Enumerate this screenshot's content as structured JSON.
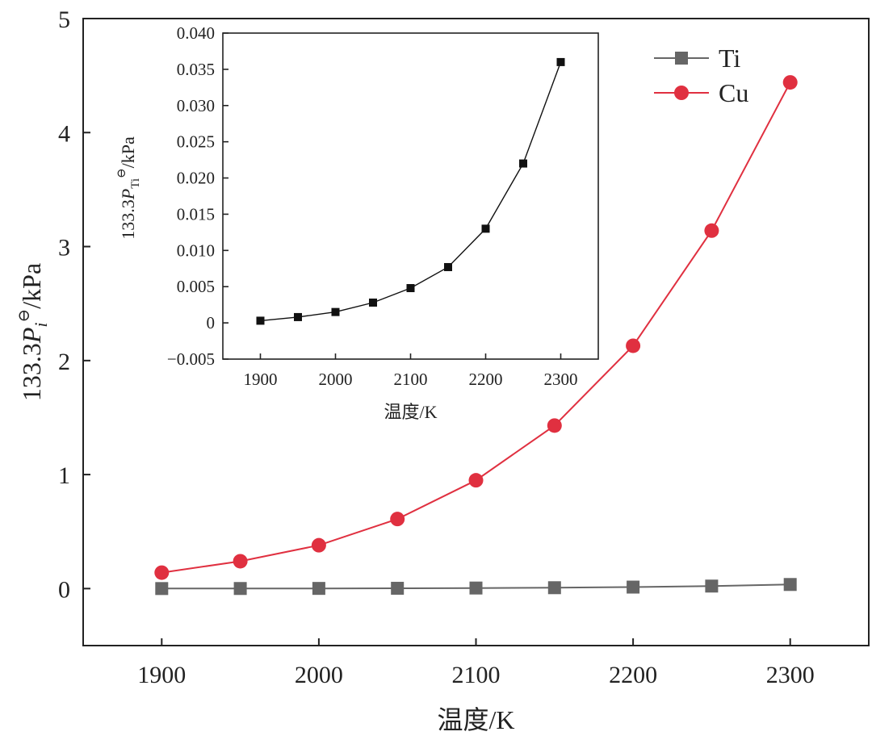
{
  "chart_data": [
    {
      "type": "line",
      "xlabel": "温度/K",
      "ylabel_parts": [
        "133.3",
        "P",
        "i",
        "⊖",
        "/kPa"
      ],
      "x": [
        1900,
        1950,
        2000,
        2050,
        2100,
        2150,
        2200,
        2250,
        2300
      ],
      "xlim": [
        1850,
        2350
      ],
      "ylim": [
        -0.5,
        5
      ],
      "xticks": [
        1900,
        2000,
        2100,
        2200,
        2300
      ],
      "yticks": [
        0,
        1,
        2,
        3,
        4,
        5
      ],
      "legend_position": "top-right",
      "series": [
        {
          "name": "Ti",
          "color": "#666666",
          "marker": "square",
          "values": [
            0.0003,
            0.0008,
            0.0015,
            0.0028,
            0.0048,
            0.0077,
            0.013,
            0.022,
            0.036
          ]
        },
        {
          "name": "Cu",
          "color": "#e03040",
          "marker": "circle",
          "values": [
            0.14,
            0.24,
            0.38,
            0.61,
            0.95,
            1.43,
            2.13,
            3.14,
            4.44
          ]
        }
      ]
    },
    {
      "type": "line",
      "role": "inset",
      "xlabel": "温度/K",
      "ylabel_parts": [
        "133.3",
        "P",
        "Ti",
        "⊖",
        "/kPa"
      ],
      "x": [
        1900,
        1950,
        2000,
        2050,
        2100,
        2150,
        2200,
        2250,
        2300
      ],
      "xlim": [
        1850,
        2350
      ],
      "ylim": [
        -0.005,
        0.04
      ],
      "xticks": [
        1900,
        2000,
        2100,
        2200,
        2300
      ],
      "yticks": [
        -0.005,
        0,
        0.005,
        0.01,
        0.015,
        0.02,
        0.025,
        0.03,
        0.035,
        0.04
      ],
      "ytick_labels": [
        "−0.005",
        "0",
        "0.005",
        "0.010",
        "0.015",
        "0.020",
        "0.025",
        "0.030",
        "0.035",
        "0.040"
      ],
      "series": [
        {
          "color": "#111111",
          "marker": "square",
          "values": [
            0.0003,
            0.0008,
            0.0015,
            0.0028,
            0.0048,
            0.0077,
            0.013,
            0.022,
            0.036
          ]
        }
      ]
    }
  ]
}
